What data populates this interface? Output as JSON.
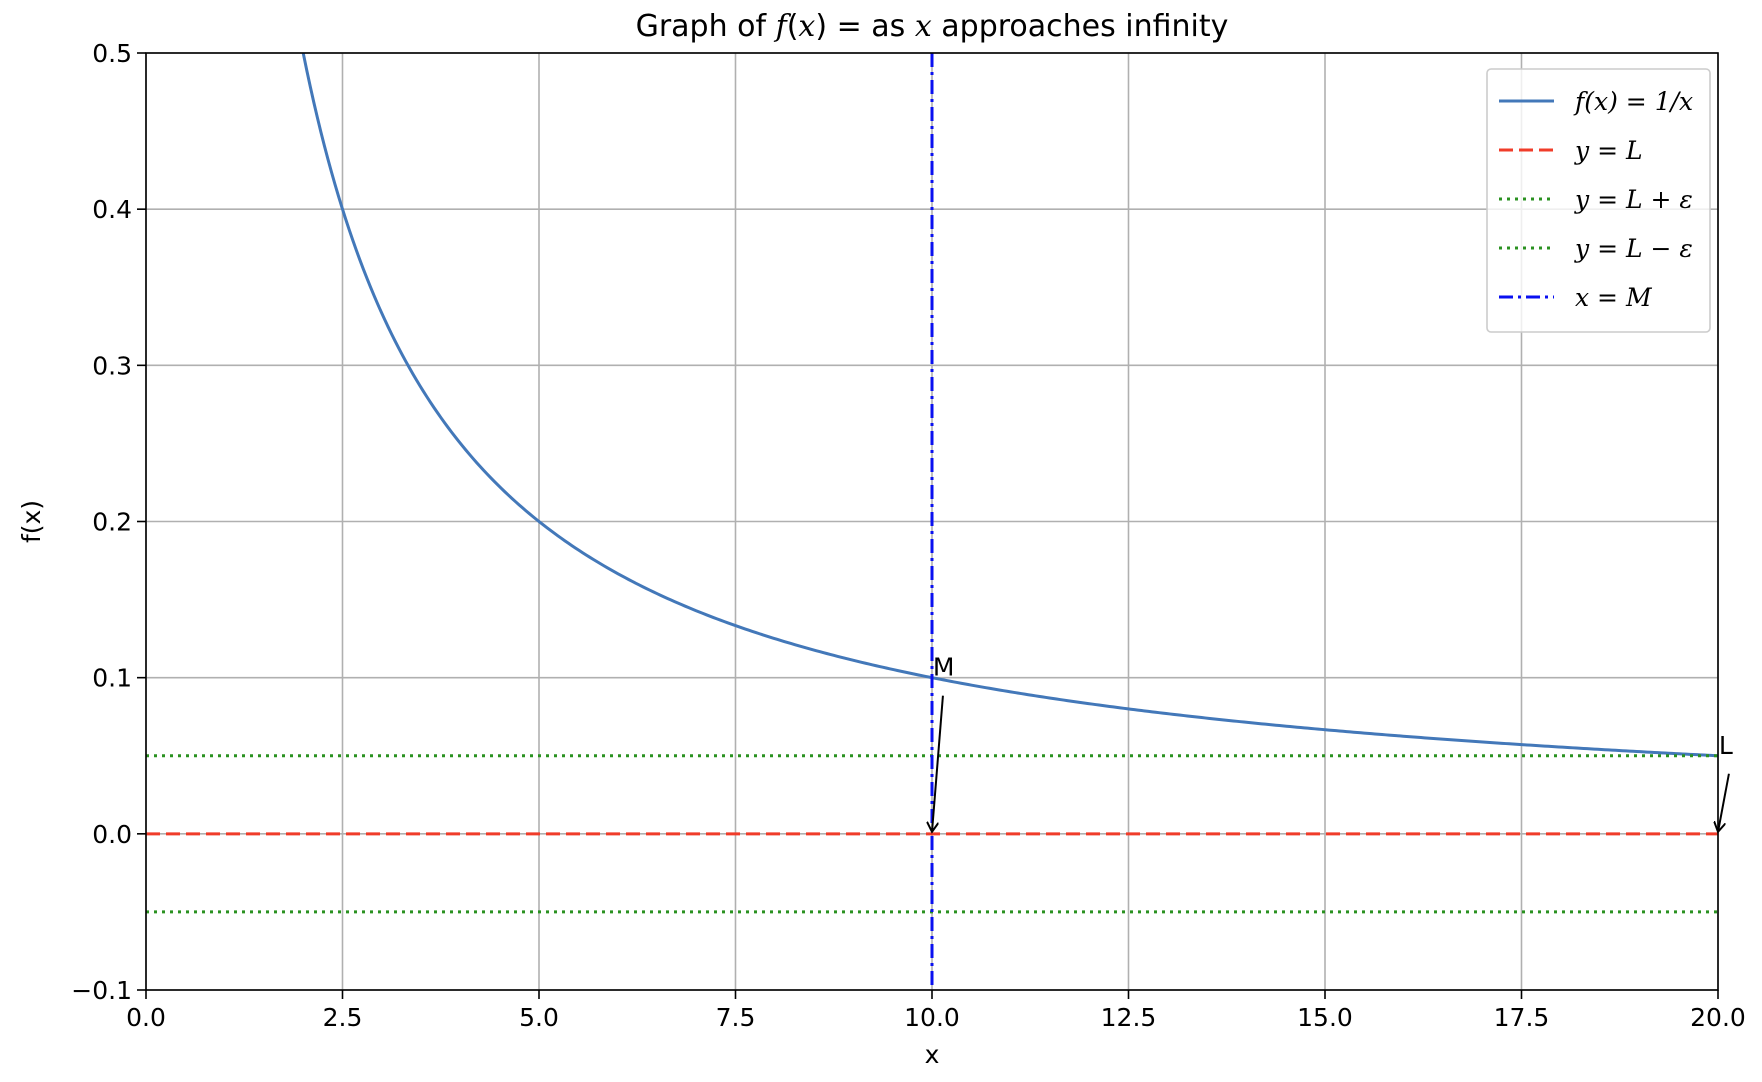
{
  "chart_data": {
    "type": "line",
    "title_parts": [
      {
        "text": "Graph of ",
        "italic": false
      },
      {
        "text": "f",
        "italic": true
      },
      {
        "text": "(",
        "italic": false
      },
      {
        "text": "x",
        "italic": true
      },
      {
        "text": ") = ",
        "italic": false
      },
      {
        "text": " as ",
        "italic": false
      },
      {
        "text": "x",
        "italic": true
      },
      {
        "text": " approaches infinity",
        "italic": false
      }
    ],
    "xlabel": "x",
    "ylabel": "f(x)",
    "xlim": [
      0,
      20
    ],
    "ylim": [
      -0.1,
      0.5
    ],
    "grid": true,
    "legend_position": "top-right",
    "x_ticks": [
      0,
      2.5,
      5,
      7.5,
      10,
      12.5,
      15,
      17.5,
      20
    ],
    "x_tick_labels": [
      "0.0",
      "2.5",
      "5.0",
      "7.5",
      "10.0",
      "12.5",
      "15.0",
      "17.5",
      "20.0"
    ],
    "y_ticks": [
      -0.1,
      0,
      0.1,
      0.2,
      0.3,
      0.4,
      0.5
    ],
    "y_tick_labels": [
      "−0.1",
      "0.0",
      "0.1",
      "0.2",
      "0.3",
      "0.4",
      "0.5"
    ],
    "series": [
      {
        "name": "f(x) = 1/x",
        "legend_label": "f(x) = 1/x",
        "kind": "curve",
        "function": "1/x",
        "x_range": [
          2,
          20
        ],
        "color": "#4378b9",
        "style": "solid"
      },
      {
        "name": "y = L",
        "legend_label": "y = L",
        "kind": "hline",
        "y": 0,
        "color": "#f03c2a",
        "style": "dashed"
      },
      {
        "name": "y = L + ε",
        "legend_label": "y = L + ε",
        "kind": "hline",
        "y": 0.05,
        "color": "#2a9120",
        "style": "dotted"
      },
      {
        "name": "y = L − ε",
        "legend_label": "y = L − ε",
        "kind": "hline",
        "y": -0.05,
        "color": "#2a9120",
        "style": "dotted"
      },
      {
        "name": "x = M",
        "legend_label": "x = M",
        "kind": "vline",
        "x": 10,
        "color": "#0a10f0",
        "style": "dashdot"
      }
    ],
    "annotations": [
      {
        "text": "M",
        "text_at": [
          10.05,
          0.1
        ],
        "point_to": [
          10,
          0
        ]
      },
      {
        "text": "L",
        "text_at": [
          20.05,
          0.05
        ],
        "point_to": [
          20,
          0
        ]
      }
    ]
  }
}
